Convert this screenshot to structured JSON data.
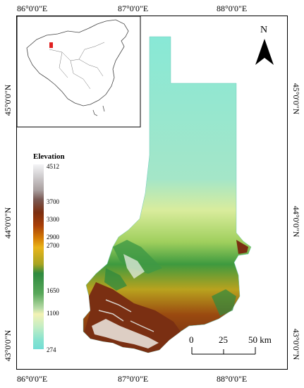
{
  "axes": {
    "top": [
      "86°0'0\"E",
      "87°0'0\"E",
      "88°0'0\"E"
    ],
    "bottom": [
      "86°0'0\"E",
      "87°0'0\"E",
      "88°0'0\"E"
    ],
    "left": [
      "45°0'0\"N",
      "44°0'0\"N",
      "43°0'0\"N"
    ],
    "right": [
      "45°0'0\"N",
      "44°0'0\"N",
      "43°0'0\"N"
    ]
  },
  "north_arrow": {
    "label": "N",
    "icon": "north-arrow-icon"
  },
  "legend": {
    "title": "Elevation",
    "ticks": [
      "4512",
      "3700",
      "3300",
      "2900",
      "2700",
      "1650",
      "1100",
      "274"
    ]
  },
  "scale_bar": {
    "labels": [
      "0",
      "25",
      "50 km"
    ]
  },
  "inset": {
    "description_icon": "china-outline-icon",
    "highlight_color": "#e02020"
  },
  "colors": {
    "lowland": "#7fe0d0",
    "mid": "#2e8a3f",
    "high": "#7b2e10",
    "peak": "#f4f4f6"
  }
}
